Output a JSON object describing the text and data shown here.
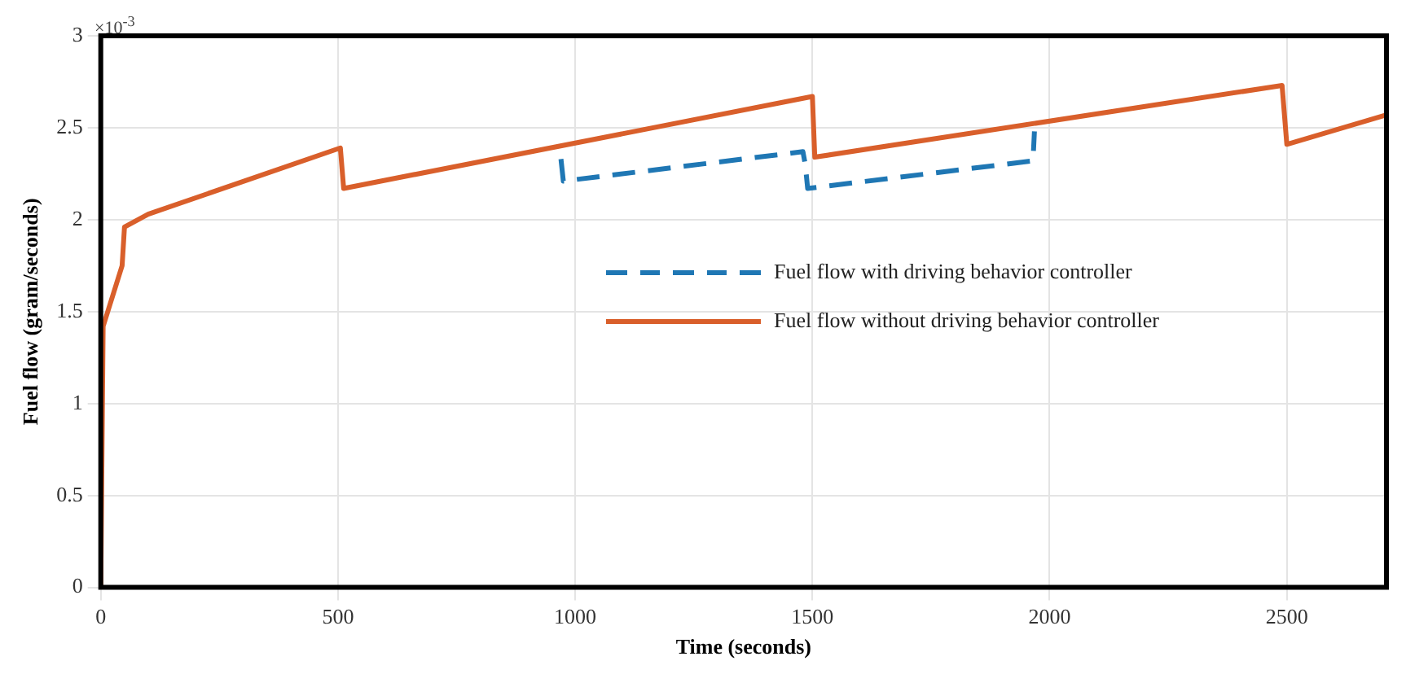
{
  "chart_data": {
    "type": "line",
    "xlabel": "Time (seconds)",
    "ylabel": "Fuel flow (gram/seconds)",
    "annotations": [
      "×10$^{-3}$"
    ],
    "xlim": [
      0,
      2710
    ],
    "xticks": [
      0,
      500,
      1000,
      1500,
      2000,
      2500
    ],
    "ylim": [
      0,
      3
    ],
    "yticks": [
      0,
      0.5,
      1,
      1.5,
      2,
      2.5,
      3
    ],
    "grid": true,
    "legend": "center",
    "marker": "none",
    "series": [
      {
        "name": "Fuel flow with driving behavior controller",
        "color": "#1f77b4",
        "line_style": "dashed",
        "x": [
          970,
          975,
          1480,
          1485,
          1490,
          1965,
          1968
        ],
        "values": [
          2.33,
          2.21,
          2.37,
          2.3,
          2.17,
          2.32,
          2.48
        ]
      },
      {
        "name": "Fuel flow without driving behavior controller",
        "color": "#d95f2b",
        "line_style": "solid",
        "x": [
          0,
          5,
          45,
          50,
          100,
          505,
          512,
          1500,
          1505,
          2490,
          2500,
          2710
        ],
        "values": [
          0,
          1.42,
          1.75,
          1.96,
          2.03,
          2.39,
          2.17,
          2.67,
          2.34,
          2.73,
          2.41,
          2.57
        ]
      }
    ]
  }
}
